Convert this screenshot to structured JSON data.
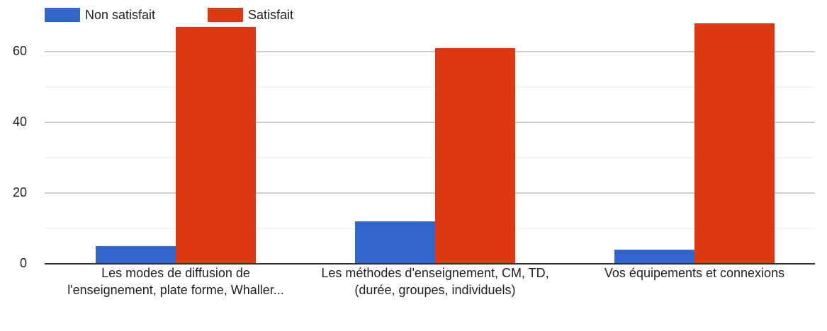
{
  "chart_data": {
    "type": "bar",
    "categories": [
      "Les modes de diffusion de l'enseignement, plate forme, Whaller...",
      "Les méthodes d'enseignement, CM, TD, (durée, groupes, individuels)",
      "Vos équipements et connexions"
    ],
    "series": [
      {
        "name": "Non satisfait",
        "color": "#3366cc",
        "values": [
          5,
          12,
          4
        ]
      },
      {
        "name": "Satisfait",
        "color": "#dc3912",
        "values": [
          67,
          61,
          68
        ]
      }
    ],
    "ylim": [
      0,
      70
    ],
    "yticks": [
      0,
      20,
      40,
      60
    ],
    "minor_yticks": [
      10,
      30,
      50
    ],
    "grid": true,
    "legend": "top"
  }
}
